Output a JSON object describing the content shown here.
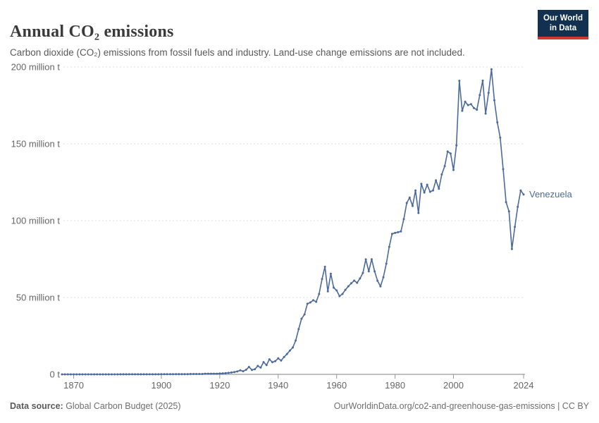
{
  "header": {
    "title": "Annual CO₂ emissions",
    "subtitle": "Carbon dioxide (CO₂) emissions from fossil fuels and industry. Land-use change emissions are not included.",
    "logo": {
      "line1": "Our World",
      "line2": "in Data",
      "bg_color": "#12304F",
      "accent_color": "#CE392F"
    }
  },
  "footer": {
    "source_label": "Data source:",
    "source_value": " Global Carbon Budget (2025)",
    "link_text": "OurWorldinData.org/co2-and-greenhouse-gas-emissions | CC BY"
  },
  "chart_data": {
    "type": "line",
    "title": "Annual CO₂ emissions",
    "xlabel": "",
    "ylabel": "",
    "unit": "million t",
    "grid": "horizontal dashed",
    "legend": "end-of-line label",
    "xlim": [
      1866,
      2024
    ],
    "ylim": [
      0,
      200
    ],
    "x_ticks": [
      1870,
      1900,
      1920,
      1940,
      1960,
      1980,
      2000,
      2024
    ],
    "y_ticks": [
      {
        "value": 0,
        "label": "0 t"
      },
      {
        "value": 50,
        "label": "50 million t"
      },
      {
        "value": 100,
        "label": "100 million t"
      },
      {
        "value": 150,
        "label": "150 million t"
      },
      {
        "value": 200,
        "label": "200 million t"
      }
    ],
    "series": [
      {
        "name": "Venezuela",
        "color": "#4C6A9C",
        "year_start": 1866,
        "year_step": 1,
        "values": [
          0.02,
          0.02,
          0.02,
          0.02,
          0.02,
          0.02,
          0.02,
          0.02,
          0.02,
          0.02,
          0.02,
          0.02,
          0.02,
          0.02,
          0.02,
          0.02,
          0.02,
          0.02,
          0.02,
          0.02,
          0.05,
          0.05,
          0.05,
          0.05,
          0.05,
          0.05,
          0.05,
          0.05,
          0.05,
          0.05,
          0.05,
          0.05,
          0.05,
          0.05,
          0.1,
          0.1,
          0.1,
          0.1,
          0.1,
          0.15,
          0.15,
          0.15,
          0.15,
          0.15,
          0.25,
          0.25,
          0.25,
          0.25,
          0.25,
          0.4,
          0.4,
          0.4,
          0.4,
          0.4,
          0.55,
          0.65,
          0.8,
          0.95,
          1.2,
          1.5,
          1.9,
          2.6,
          2.0,
          3.0,
          4.8,
          2.9,
          3.3,
          5.5,
          4.4,
          8.0,
          6.0,
          9.8,
          7.9,
          8.6,
          10.4,
          9.0,
          11.3,
          13.2,
          15.5,
          17.5,
          22.0,
          29.4,
          36.2,
          39.0,
          45.9,
          46.8,
          48.2,
          47.2,
          52.3,
          62.0,
          70.0,
          54.0,
          65.5,
          56.4,
          54.6,
          50.9,
          52.3,
          55.0,
          57.3,
          59.2,
          61.0,
          59.6,
          62.4,
          66.0,
          74.8,
          67.0,
          74.9,
          67.0,
          60.9,
          57.2,
          63.2,
          72.0,
          83.0,
          91.4,
          92.0,
          92.5,
          93.0,
          101.0,
          111.5,
          115.0,
          109.6,
          119.7,
          105.0,
          124.0,
          118.3,
          123.4,
          118.8,
          119.7,
          126.3,
          120.8,
          130.1,
          135.5,
          145.0,
          143.7,
          133.0,
          149.0,
          191.0,
          171.5,
          177.4,
          175.2,
          175.8,
          173.3,
          172.2,
          181.7,
          191.1,
          169.7,
          183.2,
          198.5,
          178.3,
          164.0,
          154.0,
          133.5,
          112.0,
          106.0,
          81.5,
          96.0,
          109.0,
          119.7,
          117.0
        ]
      }
    ]
  },
  "style": {
    "grid_color": "#dcdcdc",
    "axis_color": "#808080",
    "tick_color": "#999999",
    "label_color": "#666666"
  }
}
